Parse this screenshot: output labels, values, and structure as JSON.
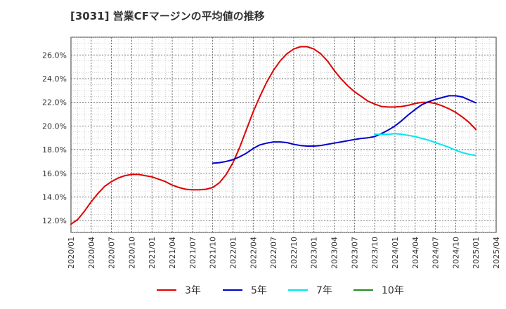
{
  "chart_data": {
    "type": "line",
    "title": "[3031]  営業CFマージンの平均値の推移",
    "xlabel": "",
    "ylabel": "",
    "ylim": [
      11.0,
      27.5
    ],
    "y_ticks": [
      12.0,
      14.0,
      16.0,
      18.0,
      20.0,
      22.0,
      24.0,
      26.0
    ],
    "y_tick_labels": [
      "12.0%",
      "14.0%",
      "16.0%",
      "18.0%",
      "20.0%",
      "22.0%",
      "24.0%",
      "26.0%"
    ],
    "x_tick_labels": [
      "2020/01",
      "2020/04",
      "2020/07",
      "2020/10",
      "2021/01",
      "2021/04",
      "2021/07",
      "2021/10",
      "2022/01",
      "2022/04",
      "2022/07",
      "2022/10",
      "2023/01",
      "2023/04",
      "2023/07",
      "2023/10",
      "2024/01",
      "2024/04",
      "2024/07",
      "2024/10",
      "2025/01",
      "2025/04"
    ],
    "grid": true,
    "legend_position": "bottom",
    "series": [
      {
        "name": "3年",
        "color": "#e00000",
        "x": [
          "2020/01",
          "2020/02",
          "2020/03",
          "2020/04",
          "2020/05",
          "2020/06",
          "2020/07",
          "2020/08",
          "2020/09",
          "2020/10",
          "2020/11",
          "2020/12",
          "2021/01",
          "2021/02",
          "2021/03",
          "2021/04",
          "2021/05",
          "2021/06",
          "2021/07",
          "2021/08",
          "2021/09",
          "2021/10",
          "2021/11",
          "2021/12",
          "2022/01",
          "2022/02",
          "2022/03",
          "2022/04",
          "2022/05",
          "2022/06",
          "2022/07",
          "2022/08",
          "2022/09",
          "2022/10",
          "2022/11",
          "2022/12",
          "2023/01",
          "2023/02",
          "2023/03",
          "2023/04",
          "2023/05",
          "2023/06",
          "2023/07",
          "2023/08",
          "2023/09",
          "2023/10",
          "2023/11",
          "2023/12",
          "2024/01",
          "2024/02",
          "2024/03",
          "2024/04",
          "2024/05",
          "2024/06",
          "2024/07",
          "2024/08",
          "2024/09",
          "2024/10",
          "2024/11",
          "2024/12",
          "2025/01"
        ],
        "values": [
          11.7,
          12.1,
          12.8,
          13.6,
          14.3,
          14.9,
          15.3,
          15.6,
          15.8,
          15.9,
          15.9,
          15.8,
          15.7,
          15.5,
          15.3,
          15.0,
          14.8,
          14.65,
          14.6,
          14.6,
          14.65,
          14.8,
          15.2,
          15.9,
          16.9,
          18.2,
          19.7,
          21.2,
          22.5,
          23.7,
          24.7,
          25.5,
          26.1,
          26.5,
          26.7,
          26.7,
          26.5,
          26.1,
          25.5,
          24.7,
          24.0,
          23.4,
          22.9,
          22.5,
          22.1,
          21.85,
          21.65,
          21.6,
          21.6,
          21.65,
          21.75,
          21.9,
          22.0,
          22.0,
          21.9,
          21.7,
          21.45,
          21.15,
          20.75,
          20.3,
          19.7
        ]
      },
      {
        "name": "5年",
        "color": "#0000cc",
        "x": [
          "2021/10",
          "2021/11",
          "2021/12",
          "2022/01",
          "2022/02",
          "2022/03",
          "2022/04",
          "2022/05",
          "2022/06",
          "2022/07",
          "2022/08",
          "2022/09",
          "2022/10",
          "2022/11",
          "2022/12",
          "2023/01",
          "2023/02",
          "2023/03",
          "2023/04",
          "2023/05",
          "2023/06",
          "2023/07",
          "2023/08",
          "2023/09",
          "2023/10",
          "2023/11",
          "2023/12",
          "2024/01",
          "2024/02",
          "2024/03",
          "2024/04",
          "2024/05",
          "2024/06",
          "2024/07",
          "2024/08",
          "2024/09",
          "2024/10",
          "2024/11",
          "2024/12",
          "2025/01"
        ],
        "values": [
          16.85,
          16.9,
          17.0,
          17.15,
          17.4,
          17.7,
          18.1,
          18.4,
          18.55,
          18.65,
          18.65,
          18.6,
          18.45,
          18.35,
          18.3,
          18.3,
          18.35,
          18.45,
          18.55,
          18.65,
          18.75,
          18.85,
          18.95,
          19.0,
          19.1,
          19.35,
          19.65,
          20.0,
          20.45,
          20.95,
          21.4,
          21.8,
          22.05,
          22.25,
          22.4,
          22.55,
          22.55,
          22.45,
          22.2,
          21.95
        ]
      },
      {
        "name": "7年",
        "color": "#00e5ee",
        "x": [
          "2023/10",
          "2023/11",
          "2023/12",
          "2024/01",
          "2024/02",
          "2024/03",
          "2024/04",
          "2024/05",
          "2024/06",
          "2024/07",
          "2024/08",
          "2024/09",
          "2024/10",
          "2024/11",
          "2024/12",
          "2025/01"
        ],
        "values": [
          19.3,
          19.3,
          19.3,
          19.35,
          19.3,
          19.2,
          19.1,
          18.95,
          18.8,
          18.6,
          18.4,
          18.2,
          17.95,
          17.75,
          17.6,
          17.5
        ]
      },
      {
        "name": "10年",
        "color": "#228b22",
        "x": [],
        "values": []
      }
    ]
  }
}
